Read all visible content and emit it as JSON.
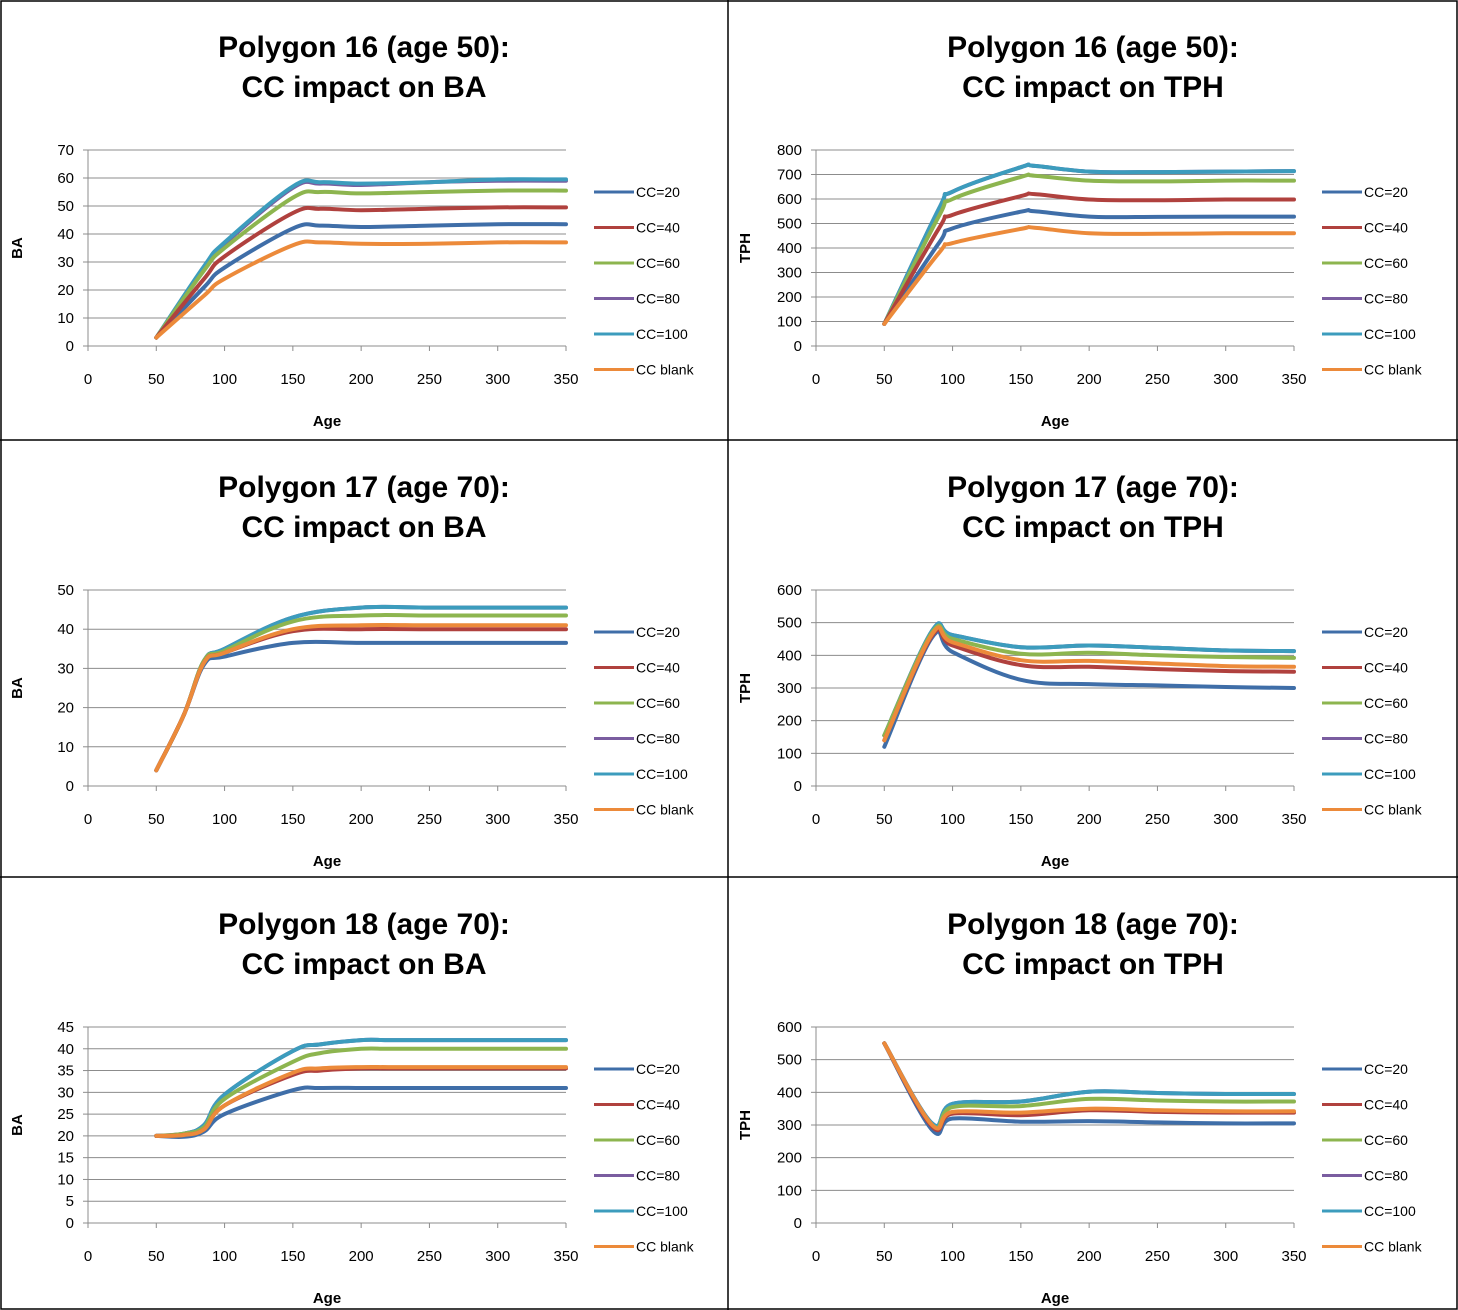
{
  "legend": [
    {
      "name": "CC=20",
      "color": "#3f6ea8"
    },
    {
      "name": "CC=40",
      "color": "#b0413e"
    },
    {
      "name": "CC=60",
      "color": "#8db54f"
    },
    {
      "name": "CC=80",
      "color": "#7a5da0"
    },
    {
      "name": "CC=100",
      "color": "#3c9cbd"
    },
    {
      "name": "CC blank",
      "color": "#ec8a3a"
    }
  ],
  "chart_data": [
    {
      "type": "line",
      "title": [
        "Polygon 16 (age 50):",
        "CC impact on BA"
      ],
      "xlabel": "Age",
      "ylabel": "BA",
      "xlim": [
        0,
        350
      ],
      "xticks": [
        0,
        50,
        100,
        150,
        200,
        250,
        300,
        350
      ],
      "ylim": [
        0,
        70
      ],
      "yticks": [
        0,
        10,
        20,
        30,
        40,
        50,
        60,
        70
      ],
      "legend_position": "right",
      "grid": true,
      "x": [
        50,
        85,
        100,
        150,
        170,
        200,
        250,
        300,
        350
      ],
      "series": [
        {
          "name": "CC=20",
          "values": [
            3,
            21,
            28,
            42,
            43,
            42.5,
            43,
            43.5,
            43.5
          ]
        },
        {
          "name": "CC=40",
          "values": [
            3,
            24,
            32,
            47.5,
            49,
            48.5,
            49,
            49.5,
            49.5
          ]
        },
        {
          "name": "CC=60",
          "values": [
            3,
            27,
            35,
            53,
            55,
            54.5,
            55,
            55.5,
            55.5
          ]
        },
        {
          "name": "CC=80",
          "values": [
            3,
            28,
            36.5,
            56.5,
            58,
            57.5,
            58.5,
            59,
            59
          ]
        },
        {
          "name": "CC=100",
          "values": [
            3,
            28.5,
            37,
            57,
            58.5,
            58,
            58.5,
            59.5,
            59.5
          ]
        },
        {
          "name": "CC blank",
          "values": [
            3,
            18,
            24,
            36,
            37,
            36.5,
            36.5,
            37,
            37
          ]
        }
      ]
    },
    {
      "type": "line",
      "title": [
        "Polygon 16 (age 50):",
        "CC impact on TPH"
      ],
      "xlabel": "Age",
      "ylabel": "TPH",
      "xlim": [
        0,
        350
      ],
      "xticks": [
        0,
        50,
        100,
        150,
        200,
        250,
        300,
        350
      ],
      "ylim": [
        0,
        800
      ],
      "yticks": [
        0,
        100,
        200,
        300,
        400,
        500,
        600,
        700,
        800
      ],
      "legend_position": "right",
      "grid": true,
      "x": [
        50,
        90,
        100,
        150,
        160,
        200,
        250,
        300,
        350
      ],
      "series": [
        {
          "name": "CC=20",
          "values": [
            90,
            420,
            480,
            548,
            550,
            528,
            527,
            528,
            528
          ]
        },
        {
          "name": "CC=40",
          "values": [
            90,
            480,
            535,
            612,
            620,
            598,
            595,
            598,
            598
          ]
        },
        {
          "name": "CC=60",
          "values": [
            90,
            530,
            600,
            690,
            695,
            675,
            672,
            675,
            675
          ]
        },
        {
          "name": "CC=80",
          "values": [
            90,
            560,
            630,
            730,
            735,
            712,
            710,
            712,
            714
          ]
        },
        {
          "name": "CC=100",
          "values": [
            90,
            560,
            630,
            730,
            735,
            712,
            710,
            712,
            714
          ]
        },
        {
          "name": "CC blank",
          "values": [
            90,
            380,
            420,
            478,
            483,
            460,
            458,
            460,
            460
          ]
        }
      ]
    },
    {
      "type": "line",
      "title": [
        "Polygon 17 (age 70):",
        "CC impact on BA"
      ],
      "xlabel": "Age",
      "ylabel": "BA",
      "xlim": [
        0,
        350
      ],
      "xticks": [
        0,
        50,
        100,
        150,
        200,
        250,
        300,
        350
      ],
      "ylim": [
        0,
        50
      ],
      "yticks": [
        0,
        10,
        20,
        30,
        40,
        50
      ],
      "legend_position": "right",
      "grid": true,
      "x": [
        50,
        70,
        85,
        100,
        150,
        200,
        250,
        300,
        350
      ],
      "series": [
        {
          "name": "CC=20",
          "values": [
            4,
            18,
            31,
            33,
            36.5,
            36.5,
            36.5,
            36.5,
            36.5
          ]
        },
        {
          "name": "CC=40",
          "values": [
            4,
            18,
            31.5,
            34,
            39.5,
            40,
            40,
            40,
            40
          ]
        },
        {
          "name": "CC=60",
          "values": [
            4,
            18,
            32,
            34.5,
            42,
            43.5,
            43.5,
            43.5,
            43.5
          ]
        },
        {
          "name": "CC=80",
          "values": [
            4,
            18,
            32,
            35,
            43,
            45.5,
            45.5,
            45.5,
            45.5
          ]
        },
        {
          "name": "CC=100",
          "values": [
            4,
            18,
            32,
            35,
            43,
            45.5,
            45.5,
            45.5,
            45.5
          ]
        },
        {
          "name": "CC blank",
          "values": [
            4,
            18,
            31.5,
            34,
            40,
            41,
            41,
            41,
            41
          ]
        }
      ]
    },
    {
      "type": "line",
      "title": [
        "Polygon 17 (age 70):",
        "CC impact on TPH"
      ],
      "xlabel": "Age",
      "ylabel": "TPH",
      "xlim": [
        0,
        350
      ],
      "xticks": [
        0,
        50,
        100,
        150,
        200,
        250,
        300,
        350
      ],
      "ylim": [
        0,
        600
      ],
      "yticks": [
        0,
        100,
        200,
        300,
        400,
        500,
        600
      ],
      "legend_position": "right",
      "grid": true,
      "x": [
        50,
        85,
        100,
        150,
        200,
        250,
        300,
        350
      ],
      "series": [
        {
          "name": "CC=20",
          "values": [
            120,
            455,
            410,
            325,
            312,
            308,
            303,
            300
          ]
        },
        {
          "name": "CC=40",
          "values": [
            140,
            460,
            430,
            370,
            365,
            358,
            352,
            350
          ]
        },
        {
          "name": "CC=60",
          "values": [
            155,
            470,
            450,
            405,
            408,
            400,
            395,
            392
          ]
        },
        {
          "name": "CC=80",
          "values": [
            155,
            475,
            462,
            425,
            430,
            423,
            415,
            413
          ]
        },
        {
          "name": "CC=100",
          "values": [
            155,
            475,
            462,
            425,
            430,
            423,
            415,
            413
          ]
        },
        {
          "name": "CC blank",
          "values": [
            140,
            465,
            440,
            385,
            383,
            375,
            367,
            365
          ]
        }
      ]
    },
    {
      "type": "line",
      "title": [
        "Polygon 18 (age 70):",
        "CC impact on BA"
      ],
      "xlabel": "Age",
      "ylabel": "BA",
      "xlim": [
        0,
        350
      ],
      "xticks": [
        0,
        50,
        100,
        150,
        200,
        250,
        300,
        350
      ],
      "ylim": [
        0,
        45
      ],
      "yticks": [
        0,
        5,
        10,
        15,
        20,
        25,
        30,
        35,
        40,
        45
      ],
      "legend_position": "right",
      "grid": true,
      "x": [
        50,
        70,
        85,
        100,
        150,
        170,
        200,
        220,
        250,
        300,
        350
      ],
      "series": [
        {
          "name": "CC=20",
          "values": [
            20,
            19.8,
            21,
            25,
            30.5,
            31,
            31,
            31,
            31,
            31,
            31
          ]
        },
        {
          "name": "CC=40",
          "values": [
            20,
            20.2,
            21.5,
            27,
            34,
            35,
            35.5,
            35.5,
            35.5,
            35.5,
            35.5
          ]
        },
        {
          "name": "CC=60",
          "values": [
            20,
            20.5,
            22,
            28.5,
            37,
            39,
            40,
            40,
            40,
            40,
            40
          ]
        },
        {
          "name": "CC=80",
          "values": [
            20,
            20.5,
            22.5,
            29.5,
            39.5,
            41,
            42,
            42,
            42,
            42,
            42
          ]
        },
        {
          "name": "CC=100",
          "values": [
            20,
            20.5,
            22.5,
            29.5,
            39.5,
            41,
            42,
            42,
            42,
            42,
            42
          ]
        },
        {
          "name": "CC blank",
          "values": [
            20,
            20.2,
            21.5,
            27,
            34.5,
            35.5,
            35.8,
            35.8,
            35.8,
            35.8,
            35.8
          ]
        }
      ]
    },
    {
      "type": "line",
      "title": [
        "Polygon 18 (age 70):",
        "CC impact on TPH"
      ],
      "xlabel": "Age",
      "ylabel": "TPH",
      "xlim": [
        0,
        350
      ],
      "xticks": [
        0,
        50,
        100,
        150,
        200,
        250,
        300,
        350
      ],
      "ylim": [
        0,
        600
      ],
      "yticks": [
        0,
        100,
        200,
        300,
        400,
        500,
        600
      ],
      "legend_position": "right",
      "grid": true,
      "x": [
        50,
        85,
        100,
        150,
        200,
        250,
        300,
        350
      ],
      "series": [
        {
          "name": "CC=20",
          "values": [
            550,
            285,
            320,
            310,
            312,
            308,
            305,
            305
          ]
        },
        {
          "name": "CC=40",
          "values": [
            550,
            295,
            335,
            330,
            345,
            340,
            338,
            338
          ]
        },
        {
          "name": "CC=60",
          "values": [
            550,
            300,
            355,
            358,
            380,
            375,
            372,
            372
          ]
        },
        {
          "name": "CC=80",
          "values": [
            550,
            305,
            365,
            372,
            402,
            398,
            395,
            395
          ]
        },
        {
          "name": "CC=100",
          "values": [
            550,
            305,
            365,
            372,
            402,
            398,
            395,
            395
          ]
        },
        {
          "name": "CC blank",
          "values": [
            550,
            300,
            340,
            338,
            350,
            345,
            342,
            342
          ]
        }
      ]
    }
  ]
}
